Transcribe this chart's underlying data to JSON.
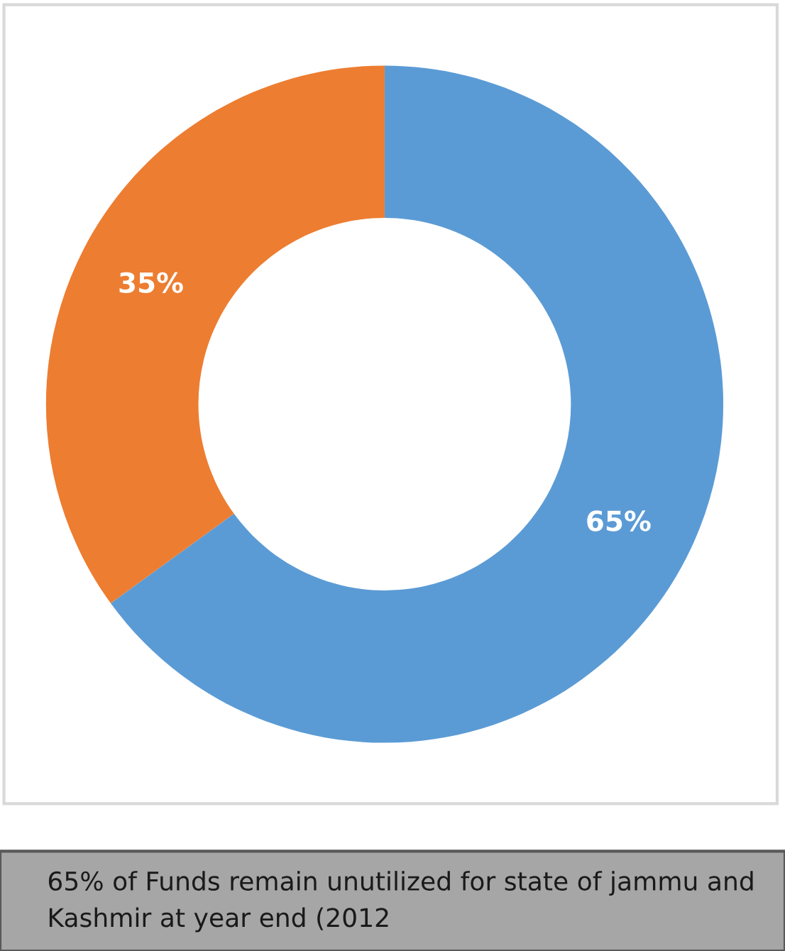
{
  "chart_data": {
    "type": "donut",
    "categories": [
      null,
      null
    ],
    "values": [
      65,
      35
    ],
    "colors": [
      "#5b9bd5",
      "#ed7d31"
    ],
    "value_labels": [
      "65%",
      "35%"
    ],
    "legend": false,
    "annotations": [
      "65% of Funds remain unutilized for state of jammu and Kashmir at year end (2012"
    ]
  }
}
